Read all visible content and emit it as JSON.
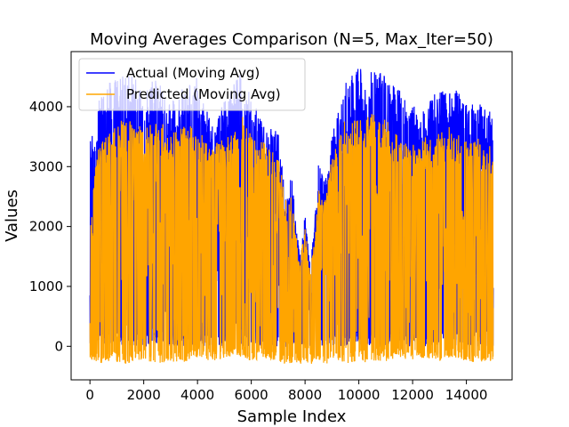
{
  "chart_data": {
    "type": "line",
    "title": "Moving Averages Comparison (N=5, Max_Iter=50)",
    "xlabel": "Sample Index",
    "ylabel": "Values",
    "xlim": [
      -700,
      15700
    ],
    "ylim": [
      -560,
      4920
    ],
    "xticks": [
      0,
      2000,
      4000,
      6000,
      8000,
      10000,
      12000,
      14000
    ],
    "yticks": [
      0,
      1000,
      2000,
      3000,
      4000
    ],
    "legend_position": "top-left",
    "grid": false,
    "series": [
      {
        "name": "Actual (Moving Avg)",
        "color": "#0000ff",
        "x_range": [
          0,
          15000
        ],
        "description_points": {
          "x": [
            0,
            300,
            700,
            1000,
            1500,
            2000,
            2500,
            3000,
            3500,
            4000,
            4500,
            5000,
            5500,
            5700,
            6000,
            6500,
            7000,
            7300,
            7500,
            7800,
            8000,
            8200,
            8500,
            8800,
            9000,
            9500,
            10000,
            10500,
            11000,
            11500,
            12000,
            12500,
            13000,
            13500,
            14000,
            14500,
            15000
          ],
          "y_low": [
            0,
            50,
            0,
            0,
            0,
            0,
            0,
            0,
            0,
            0,
            0,
            0,
            0,
            0,
            0,
            0,
            0,
            0,
            0,
            0,
            0,
            0,
            0,
            0,
            0,
            0,
            0,
            0,
            0,
            0,
            0,
            0,
            0,
            0,
            0,
            0,
            0
          ],
          "y_high": [
            3400,
            4100,
            4400,
            4500,
            4600,
            4300,
            4500,
            4100,
            4400,
            4500,
            3800,
            4100,
            4500,
            4650,
            4200,
            3700,
            3600,
            2400,
            2900,
            1500,
            2200,
            1300,
            3100,
            2800,
            3500,
            4400,
            4650,
            4650,
            4600,
            4300,
            4000,
            4050,
            4300,
            4400,
            4050,
            4050,
            3900
          ]
        }
      },
      {
        "name": "Predicted (Moving Avg)",
        "color": "#ffa500",
        "x_range": [
          0,
          15000
        ],
        "description_points": {
          "x": [
            0,
            300,
            700,
            1000,
            1500,
            2000,
            2500,
            3000,
            3500,
            4000,
            4500,
            5000,
            5500,
            5700,
            6000,
            6500,
            7000,
            7300,
            7500,
            7800,
            8000,
            8200,
            8500,
            8800,
            9000,
            9500,
            10000,
            10500,
            11000,
            11500,
            12000,
            12500,
            13000,
            13500,
            14000,
            14500,
            15000
          ],
          "y_low": [
            -250,
            -300,
            -250,
            -280,
            -300,
            -250,
            -300,
            -250,
            -280,
            -200,
            -250,
            -200,
            -150,
            -200,
            -250,
            -200,
            -250,
            -300,
            -280,
            -300,
            -250,
            -300,
            -250,
            -300,
            -250,
            -300,
            -280,
            -250,
            -250,
            -200,
            -250,
            -200,
            -250,
            -200,
            -250,
            -280,
            -250
          ],
          "y_high": [
            2300,
            3300,
            3600,
            3700,
            3900,
            3600,
            3800,
            3600,
            3700,
            3700,
            3300,
            3500,
            3600,
            3900,
            3500,
            3400,
            3200,
            2400,
            2600,
            1400,
            2000,
            1200,
            2600,
            2600,
            3200,
            3800,
            3800,
            3900,
            3800,
            3500,
            3400,
            3500,
            3600,
            3700,
            3500,
            3500,
            3300
          ]
        }
      }
    ]
  }
}
